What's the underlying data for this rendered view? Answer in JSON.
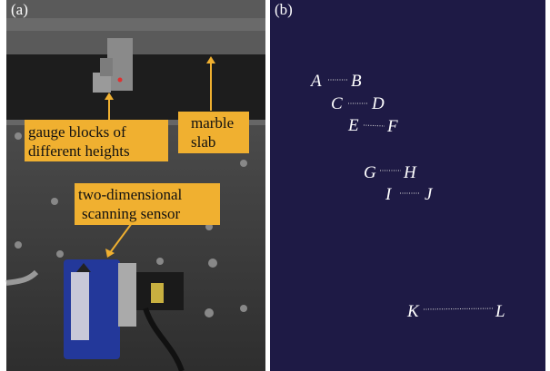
{
  "panel_a": {
    "label": "(a)",
    "annotations": [
      {
        "lines": [
          "gauge blocks of",
          "different heights"
        ]
      },
      {
        "lines": [
          "marble",
          "slab"
        ]
      },
      {
        "lines": [
          "two-dimensional",
          "scanning sensor"
        ]
      }
    ]
  },
  "panel_b": {
    "label": "(b)",
    "points": [
      "A",
      "B",
      "C",
      "D",
      "E",
      "F",
      "G",
      "H",
      "I",
      "J",
      "K",
      "L"
    ]
  }
}
